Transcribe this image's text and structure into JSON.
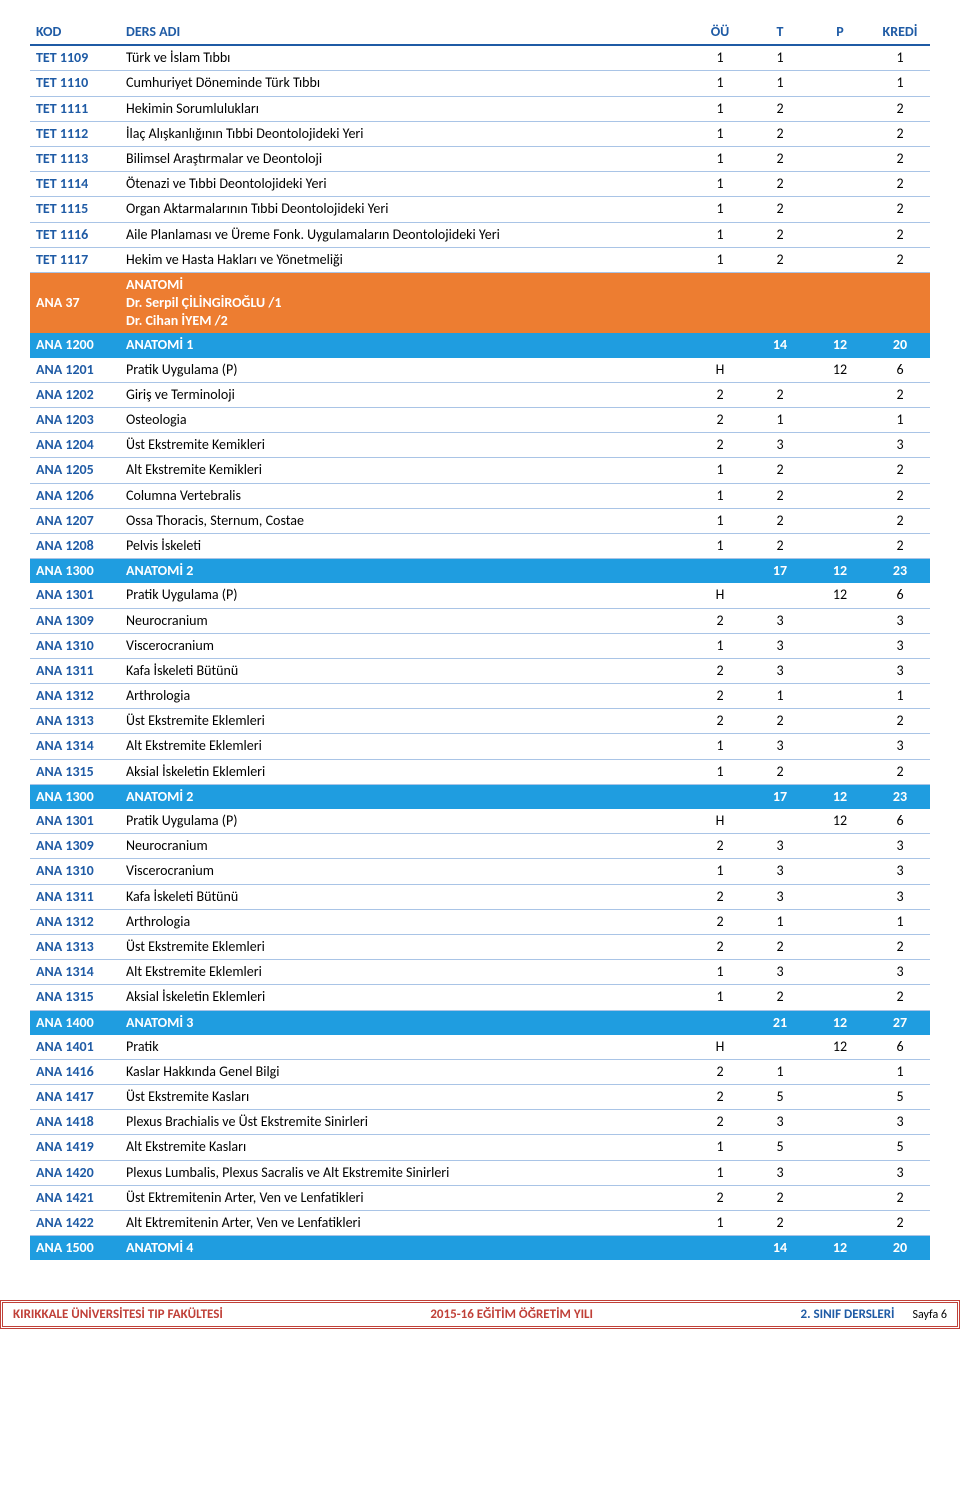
{
  "colors": {
    "header_text": "#1f5ba5",
    "header_border": "#1f5ba5",
    "row_border": "#a9c4e6",
    "orange_bg": "#ed7d31",
    "blue_bg": "#1f9de0",
    "white": "#ffffff",
    "footer_border": "#c04038",
    "footer_red": "#c04038",
    "footer_blue": "#1f5ba5"
  },
  "columns": {
    "kod": "KOD",
    "name": "DERS ADI",
    "c1": "ÖÜ",
    "c2": "T",
    "c3": "P",
    "c4": "KREDİ"
  },
  "rows": [
    {
      "type": "row",
      "kod": "TET 1109",
      "name": "Türk ve İslam Tıbbı",
      "v": [
        "1",
        "1",
        "",
        "1"
      ]
    },
    {
      "type": "row",
      "kod": "TET 1110",
      "name": "Cumhuriyet Döneminde Türk Tıbbı",
      "v": [
        "1",
        "1",
        "",
        "1"
      ]
    },
    {
      "type": "row",
      "kod": "TET 1111",
      "name": "Hekimin Sorumlulukları",
      "v": [
        "1",
        "2",
        "",
        "2"
      ]
    },
    {
      "type": "row",
      "kod": "TET 1112",
      "name": "İlaç Alışkanlığının Tıbbi Deontolojideki Yeri",
      "v": [
        "1",
        "2",
        "",
        "2"
      ]
    },
    {
      "type": "row",
      "kod": "TET 1113",
      "name": "Bilimsel Araştırmalar ve Deontoloji",
      "v": [
        "1",
        "2",
        "",
        "2"
      ]
    },
    {
      "type": "row",
      "kod": "TET 1114",
      "name": "Ötenazi ve Tıbbi Deontolojideki Yeri",
      "v": [
        "1",
        "2",
        "",
        "2"
      ]
    },
    {
      "type": "row",
      "kod": "TET 1115",
      "name": "Organ Aktarmalarının Tıbbi Deontolojideki Yeri",
      "v": [
        "1",
        "2",
        "",
        "2"
      ]
    },
    {
      "type": "row",
      "kod": "TET 1116",
      "name": "Aile Planlaması ve Üreme Fonk. Uygulamaların Deontolojideki Yeri",
      "v": [
        "1",
        "2",
        "",
        "2"
      ]
    },
    {
      "type": "row",
      "kod": "TET 1117",
      "name": "Hekim ve Hasta Hakları ve Yönetmeliği",
      "v": [
        "1",
        "2",
        "",
        "2"
      ]
    },
    {
      "type": "orange",
      "kod": "ANA 37",
      "name": "ANATOMİ\nDr. Serpil ÇİLİNGİROĞLU /1\nDr. Cihan İYEM /2",
      "v": [
        "",
        "",
        "",
        ""
      ]
    },
    {
      "type": "blue",
      "kod": "ANA 1200",
      "name": "ANATOMİ 1",
      "v": [
        "",
        "14",
        "12",
        "20"
      ]
    },
    {
      "type": "row",
      "kod": "ANA 1201",
      "name": "Pratik Uygulama (P)",
      "v": [
        "H",
        "",
        "12",
        "6"
      ]
    },
    {
      "type": "row",
      "kod": "ANA 1202",
      "name": "Giriş ve Terminoloji",
      "v": [
        "2",
        "2",
        "",
        "2"
      ]
    },
    {
      "type": "row",
      "kod": "ANA 1203",
      "name": "Osteologia",
      "v": [
        "2",
        "1",
        "",
        "1"
      ]
    },
    {
      "type": "row",
      "kod": "ANA 1204",
      "name": "Üst Ekstremite Kemikleri",
      "v": [
        "2",
        "3",
        "",
        "3"
      ]
    },
    {
      "type": "row",
      "kod": "ANA 1205",
      "name": "Alt Ekstremite Kemikleri",
      "v": [
        "1",
        "2",
        "",
        "2"
      ]
    },
    {
      "type": "row",
      "kod": "ANA 1206",
      "name": "Columna Vertebralis",
      "v": [
        "1",
        "2",
        "",
        "2"
      ]
    },
    {
      "type": "row",
      "kod": "ANA 1207",
      "name": "Ossa Thoracis, Sternum, Costae",
      "v": [
        "1",
        "2",
        "",
        "2"
      ]
    },
    {
      "type": "row",
      "kod": "ANA 1208",
      "name": "Pelvis İskeleti",
      "v": [
        "1",
        "2",
        "",
        "2"
      ]
    },
    {
      "type": "blue",
      "kod": "ANA 1300",
      "name": "ANATOMİ 2",
      "v": [
        "",
        "17",
        "12",
        "23"
      ]
    },
    {
      "type": "row",
      "kod": "ANA 1301",
      "name": "Pratik Uygulama (P)",
      "v": [
        "H",
        "",
        "12",
        "6"
      ]
    },
    {
      "type": "row",
      "kod": "ANA 1309",
      "name": "Neurocranium",
      "v": [
        "2",
        "3",
        "",
        "3"
      ]
    },
    {
      "type": "row",
      "kod": "ANA 1310",
      "name": "Viscerocranium",
      "v": [
        "1",
        "3",
        "",
        "3"
      ]
    },
    {
      "type": "row",
      "kod": "ANA 1311",
      "name": "Kafa İskeleti Bütünü",
      "v": [
        "2",
        "3",
        "",
        "3"
      ]
    },
    {
      "type": "row",
      "kod": "ANA 1312",
      "name": "Arthrologia",
      "v": [
        "2",
        "1",
        "",
        "1"
      ]
    },
    {
      "type": "row",
      "kod": "ANA 1313",
      "name": "Üst Ekstremite Eklemleri",
      "v": [
        "2",
        "2",
        "",
        "2"
      ]
    },
    {
      "type": "row",
      "kod": "ANA 1314",
      "name": "Alt Ekstremite Eklemleri",
      "v": [
        "1",
        "3",
        "",
        "3"
      ]
    },
    {
      "type": "row",
      "kod": "ANA 1315",
      "name": "Aksial İskeletin Eklemleri",
      "v": [
        "1",
        "2",
        "",
        "2"
      ]
    },
    {
      "type": "blue",
      "kod": "ANA 1300",
      "name": "ANATOMİ 2",
      "v": [
        "",
        "17",
        "12",
        "23"
      ]
    },
    {
      "type": "row",
      "kod": "ANA 1301",
      "name": "Pratik Uygulama (P)",
      "v": [
        "H",
        "",
        "12",
        "6"
      ]
    },
    {
      "type": "row",
      "kod": "ANA 1309",
      "name": "Neurocranium",
      "v": [
        "2",
        "3",
        "",
        "3"
      ]
    },
    {
      "type": "row",
      "kod": "ANA 1310",
      "name": "Viscerocranium",
      "v": [
        "1",
        "3",
        "",
        "3"
      ]
    },
    {
      "type": "row",
      "kod": "ANA 1311",
      "name": "Kafa İskeleti Bütünü",
      "v": [
        "2",
        "3",
        "",
        "3"
      ]
    },
    {
      "type": "row",
      "kod": "ANA 1312",
      "name": "Arthrologia",
      "v": [
        "2",
        "1",
        "",
        "1"
      ]
    },
    {
      "type": "row",
      "kod": "ANA 1313",
      "name": "Üst Ekstremite Eklemleri",
      "v": [
        "2",
        "2",
        "",
        "2"
      ]
    },
    {
      "type": "row",
      "kod": "ANA 1314",
      "name": "Alt Ekstremite Eklemleri",
      "v": [
        "1",
        "3",
        "",
        "3"
      ]
    },
    {
      "type": "row",
      "kod": "ANA 1315",
      "name": "Aksial İskeletin Eklemleri",
      "v": [
        "1",
        "2",
        "",
        "2"
      ]
    },
    {
      "type": "blue",
      "kod": "ANA 1400",
      "name": "ANATOMİ 3",
      "v": [
        "",
        "21",
        "12",
        "27"
      ]
    },
    {
      "type": "row",
      "kod": "ANA 1401",
      "name": "Pratik",
      "v": [
        "H",
        "",
        "12",
        "6"
      ]
    },
    {
      "type": "row",
      "kod": "ANA 1416",
      "name": "Kaslar Hakkında Genel Bilgi",
      "v": [
        "2",
        "1",
        "",
        "1"
      ]
    },
    {
      "type": "row",
      "kod": "ANA 1417",
      "name": "Üst Ekstremite Kasları",
      "v": [
        "2",
        "5",
        "",
        "5"
      ]
    },
    {
      "type": "row",
      "kod": "ANA 1418",
      "name": "Plexus Brachialis ve Üst Ekstremite Sinirleri",
      "v": [
        "2",
        "3",
        "",
        "3"
      ]
    },
    {
      "type": "row",
      "kod": "ANA 1419",
      "name": "Alt Ekstremite Kasları",
      "v": [
        "1",
        "5",
        "",
        "5"
      ]
    },
    {
      "type": "row",
      "kod": "ANA 1420",
      "name": "Plexus Lumbalis, Plexus Sacralis ve Alt Ekstremite Sinirleri",
      "v": [
        "1",
        "3",
        "",
        "3"
      ]
    },
    {
      "type": "row",
      "kod": "ANA 1421",
      "name": "Üst Ektremitenin Arter, Ven ve Lenfatikleri",
      "v": [
        "2",
        "2",
        "",
        "2"
      ]
    },
    {
      "type": "row",
      "kod": "ANA 1422",
      "name": "Alt Ektremitenin Arter, Ven ve Lenfatikleri",
      "v": [
        "1",
        "2",
        "",
        "2"
      ]
    },
    {
      "type": "blue",
      "kod": "ANA 1500",
      "name": "ANATOMİ 4",
      "v": [
        "",
        "14",
        "12",
        "20"
      ]
    }
  ],
  "footer": {
    "left": "KIRIKKALE ÜNİVERSİTESİ TIP FAKÜLTESİ",
    "mid": "2015-16 EĞİTİM ÖĞRETİM YILI",
    "right1": "2. SINIF DERSLERİ",
    "right2": "Sayfa 6"
  }
}
